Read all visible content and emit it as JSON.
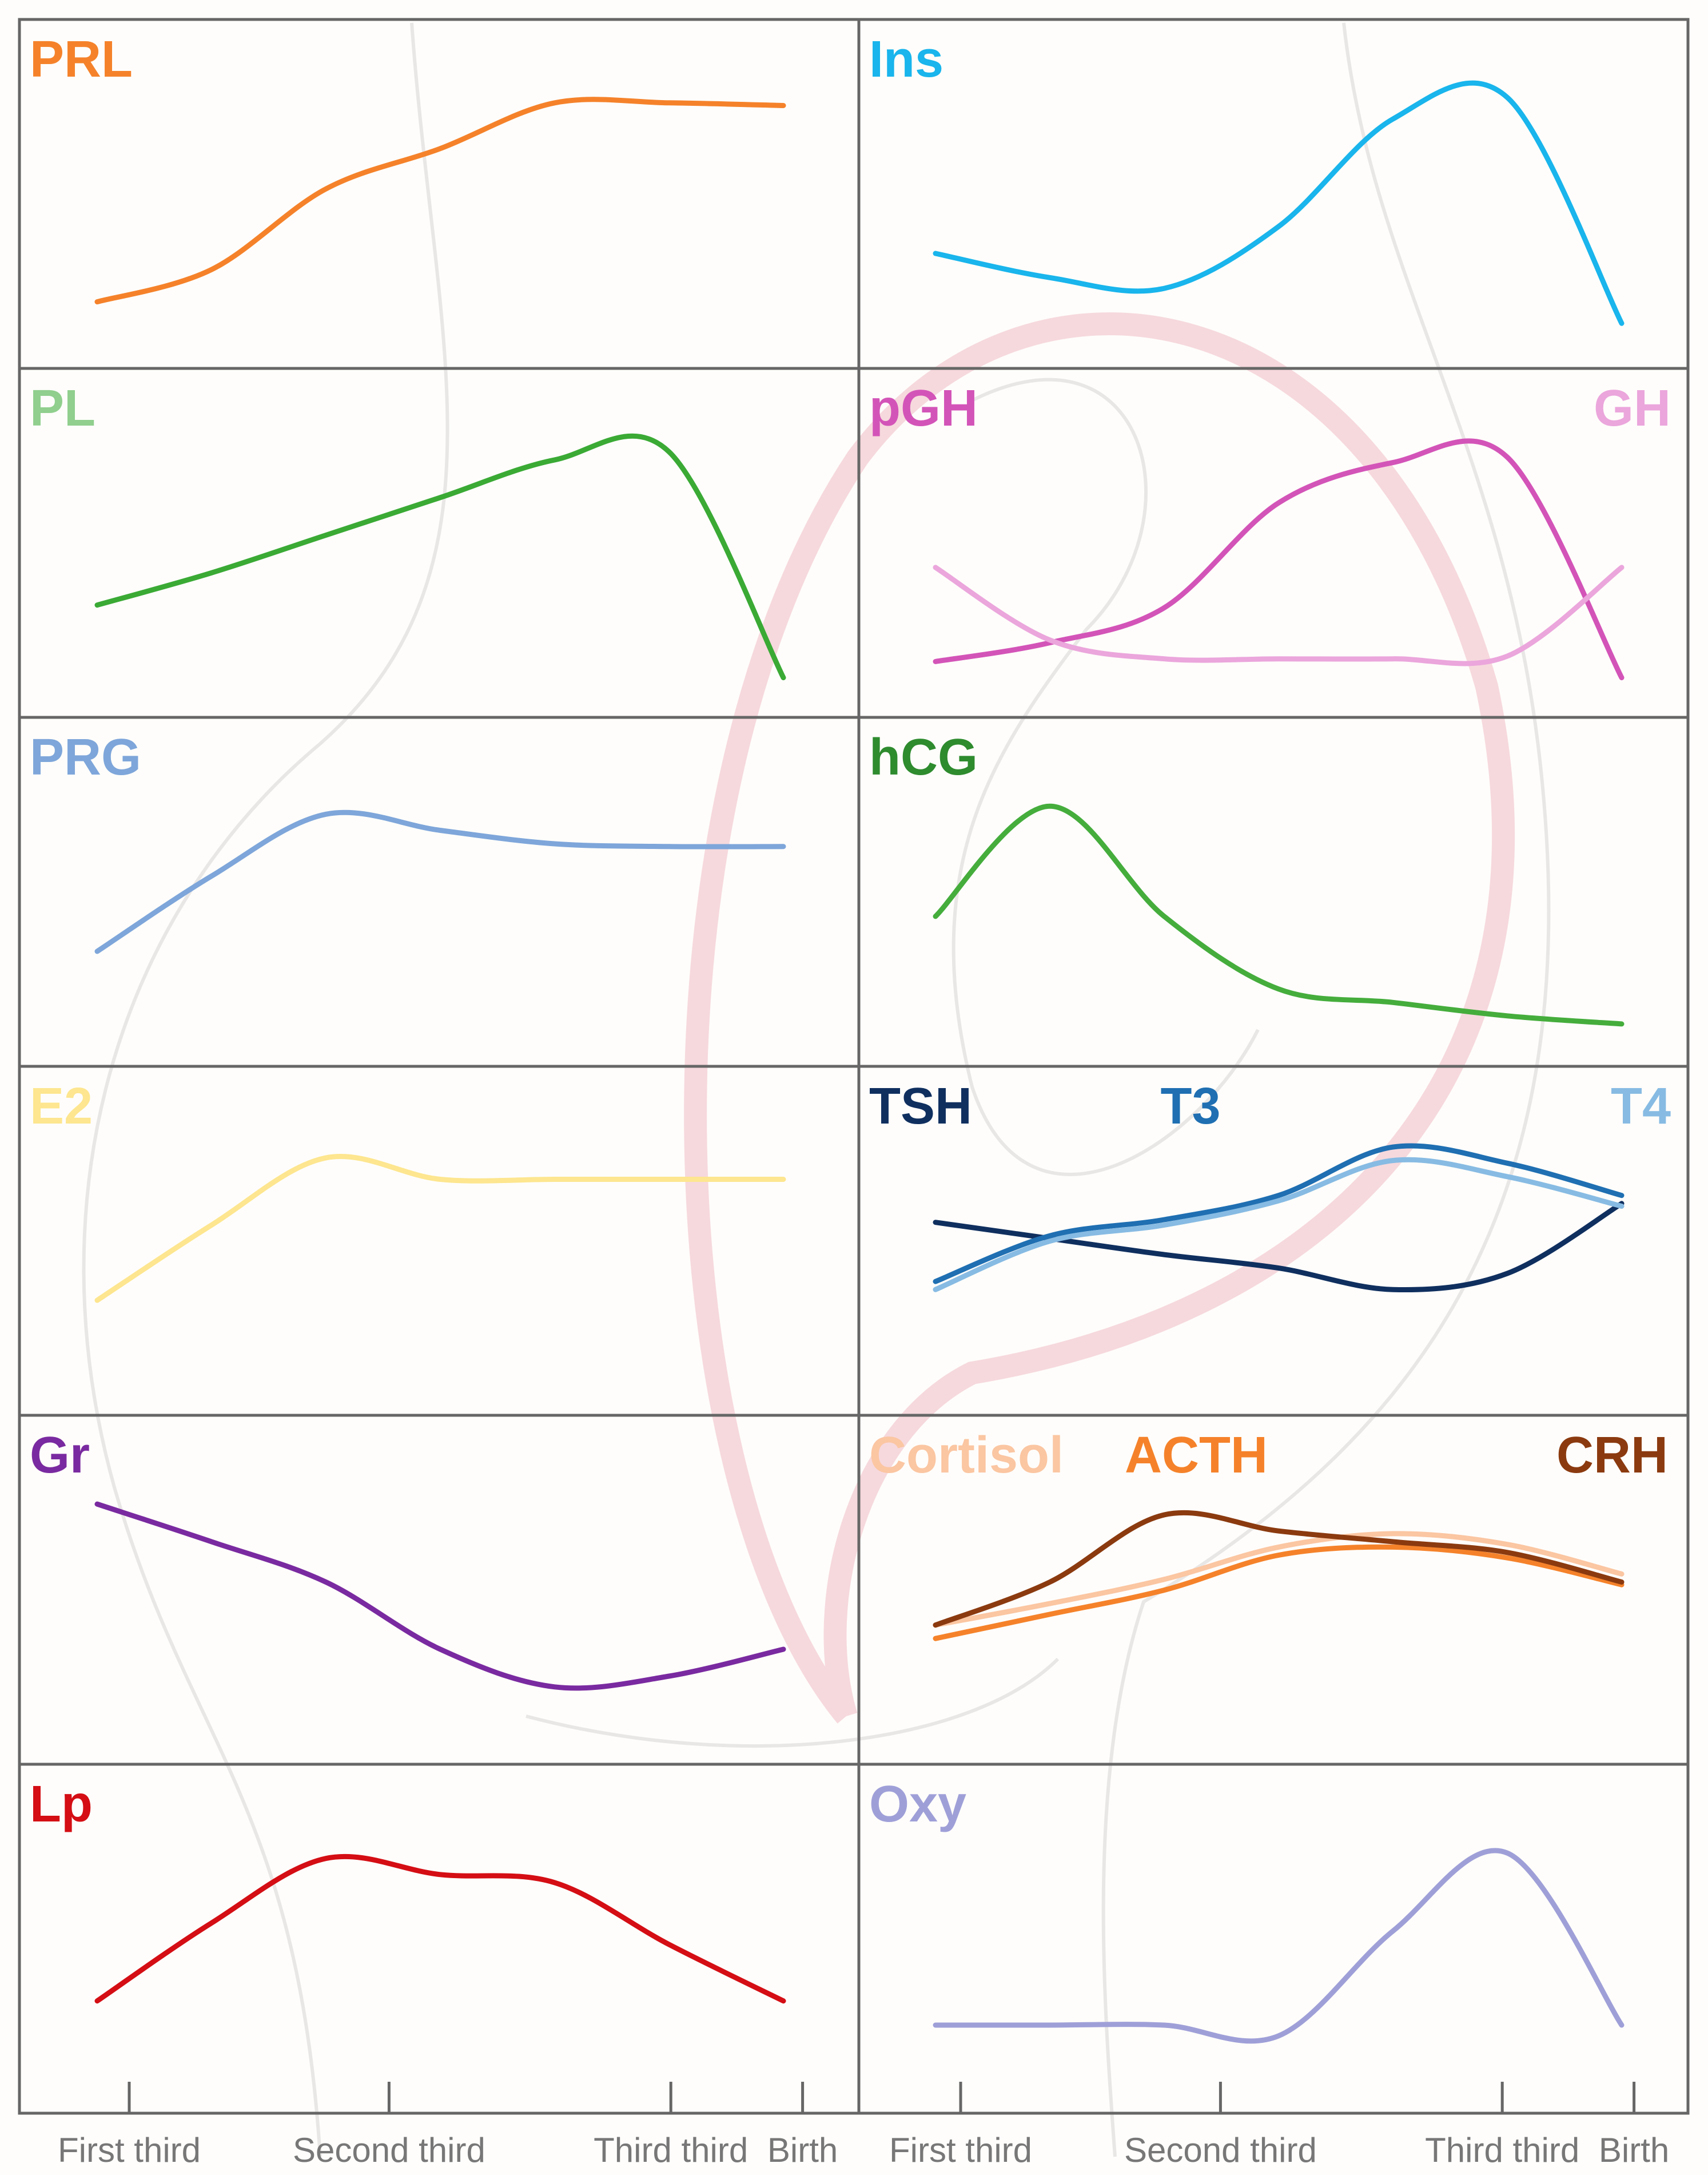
{
  "colors": {
    "PRL": "#f5822a",
    "Ins": "#19b5ec",
    "PL": "#90cf8e",
    "PL_line": "#3aaa35",
    "pGH": "#d354b8",
    "GH": "#eba6dc",
    "PRG": "#7ea6da",
    "hCG": "#2e8b2e",
    "hCG_line": "#45ad3c",
    "E2": "#fde68f",
    "TSH": "#0f2f5f",
    "T3": "#1f6fb2",
    "T4": "#87bbe3",
    "Gr": "#7a2aa0",
    "Cortisol": "#fbc6a2",
    "ACTH": "#f5822a",
    "CRH": "#8b3a0f",
    "Lp": "#d40e14",
    "Oxy": "#9f9fd8",
    "grid": "#666666",
    "background_illustration": "#f0efef"
  },
  "axes": {
    "left": {
      "ticks": [
        "First third",
        "Second third",
        "Third third",
        "Birth"
      ]
    },
    "right": {
      "ticks": [
        "First third",
        "Second third",
        "Third third",
        "Birth"
      ]
    }
  },
  "chart_data": [
    {
      "type": "line",
      "panel": "PRL",
      "labels": [
        {
          "text": "PRL",
          "color": "PRL"
        }
      ],
      "x": [
        0,
        1,
        2,
        3,
        4,
        5,
        6
      ],
      "ylim": [
        0,
        10
      ],
      "series": [
        {
          "name": "PRL",
          "color": "PRL",
          "values": [
            1.2,
            2.4,
            5.4,
            6.9,
            8.6,
            8.6,
            8.5
          ]
        }
      ]
    },
    {
      "type": "line",
      "panel": "Ins",
      "labels": [
        {
          "text": "Ins",
          "color": "Ins"
        }
      ],
      "x": [
        0,
        1,
        2,
        3,
        4,
        5,
        6
      ],
      "ylim": [
        0,
        10
      ],
      "series": [
        {
          "name": "Ins",
          "color": "Ins",
          "values": [
            3.0,
            2.1,
            1.7,
            4.0,
            8.0,
            8.8,
            0.4
          ]
        }
      ]
    },
    {
      "type": "line",
      "panel": "PL",
      "labels": [
        {
          "text": "PL",
          "color": "PL"
        }
      ],
      "x": [
        0,
        1,
        2,
        3,
        4,
        5,
        6
      ],
      "ylim": [
        0,
        10
      ],
      "series": [
        {
          "name": "PL",
          "color": "PL_line",
          "values": [
            2.9,
            4.1,
            5.5,
            6.9,
            8.3,
            8.6,
            0.2
          ]
        }
      ]
    },
    {
      "type": "line",
      "panel": "pGH / GH",
      "labels": [
        {
          "text": "pGH",
          "color": "pGH"
        },
        {
          "text": "GH",
          "color": "GH"
        }
      ],
      "x": [
        0,
        1,
        2,
        3,
        4,
        5,
        6
      ],
      "ylim": [
        0,
        10
      ],
      "series": [
        {
          "name": "pGH",
          "color": "pGH",
          "values": [
            0.8,
            1.5,
            2.8,
            6.7,
            8.2,
            8.4,
            0.2
          ]
        },
        {
          "name": "GH",
          "color": "GH",
          "values": [
            4.3,
            1.6,
            0.9,
            0.9,
            0.9,
            1.0,
            4.3
          ]
        }
      ]
    },
    {
      "type": "line",
      "panel": "PRG",
      "labels": [
        {
          "text": "PRG",
          "color": "PRG"
        }
      ],
      "x": [
        0,
        1,
        2,
        3,
        4,
        5,
        6
      ],
      "ylim": [
        0,
        10
      ],
      "series": [
        {
          "name": "PRG",
          "color": "PRG",
          "values": [
            3.0,
            5.8,
            8.1,
            7.5,
            7.0,
            6.9,
            6.9
          ]
        }
      ]
    },
    {
      "type": "line",
      "panel": "hCG",
      "labels": [
        {
          "text": "hCG",
          "color": "hCG"
        }
      ],
      "x": [
        0,
        1,
        2,
        3,
        4,
        5,
        6
      ],
      "ylim": [
        0,
        10
      ],
      "series": [
        {
          "name": "hCG",
          "color": "hCG_line",
          "values": [
            4.3,
            8.4,
            4.3,
            1.6,
            1.1,
            0.6,
            0.3
          ]
        }
      ]
    },
    {
      "type": "line",
      "panel": "E2",
      "labels": [
        {
          "text": "E2",
          "color": "E2"
        }
      ],
      "x": [
        0,
        1,
        2,
        3,
        4,
        5,
        6
      ],
      "ylim": [
        0,
        10
      ],
      "series": [
        {
          "name": "E2",
          "color": "E2",
          "values": [
            3.0,
            5.8,
            8.3,
            7.5,
            7.5,
            7.5,
            7.5
          ]
        }
      ]
    },
    {
      "type": "line",
      "panel": "TSH / T3 / T4",
      "labels": [
        {
          "text": "TSH",
          "color": "TSH"
        },
        {
          "text": "T3",
          "color": "T3"
        },
        {
          "text": "T4",
          "color": "T4"
        }
      ],
      "x": [
        0,
        1,
        2,
        3,
        4,
        5,
        6
      ],
      "ylim": [
        0,
        10
      ],
      "series": [
        {
          "name": "TSH",
          "color": "TSH",
          "values": [
            5.9,
            5.3,
            4.7,
            4.2,
            3.4,
            4.0,
            6.6
          ]
        },
        {
          "name": "T3",
          "color": "T3",
          "values": [
            3.7,
            5.4,
            6.0,
            6.9,
            8.7,
            8.1,
            6.9
          ]
        },
        {
          "name": "T4",
          "color": "T4",
          "values": [
            3.4,
            5.2,
            5.8,
            6.7,
            8.2,
            7.6,
            6.5
          ]
        }
      ]
    },
    {
      "type": "line",
      "panel": "Gr",
      "labels": [
        {
          "text": "Gr",
          "color": "Gr"
        }
      ],
      "x": [
        0,
        1,
        2,
        3,
        4,
        5,
        6
      ],
      "ylim": [
        0,
        10
      ],
      "series": [
        {
          "name": "Gr",
          "color": "Gr",
          "values": [
            8.4,
            7.0,
            5.5,
            3.0,
            1.6,
            2.0,
            3.0
          ]
        }
      ]
    },
    {
      "type": "line",
      "panel": "Cortisol / ACTH / CRH",
      "labels": [
        {
          "text": "Cortisol",
          "color": "Cortisol"
        },
        {
          "text": "ACTH",
          "color": "ACTH"
        },
        {
          "text": "CRH",
          "color": "CRH"
        }
      ],
      "x": [
        0,
        1,
        2,
        3,
        4,
        5,
        6
      ],
      "ylim": [
        0,
        10
      ],
      "series": [
        {
          "name": "Cortisol",
          "color": "Cortisol",
          "values": [
            3.9,
            4.7,
            5.6,
            6.8,
            7.3,
            6.9,
            5.8
          ]
        },
        {
          "name": "ACTH",
          "color": "ACTH",
          "values": [
            3.4,
            4.3,
            5.2,
            6.5,
            6.8,
            6.4,
            5.4
          ]
        },
        {
          "name": "CRH",
          "color": "CRH",
          "values": [
            3.9,
            5.5,
            8.0,
            7.4,
            7.0,
            6.6,
            5.5
          ]
        }
      ]
    },
    {
      "type": "line",
      "panel": "Lp",
      "labels": [
        {
          "text": "Lp",
          "color": "Lp"
        }
      ],
      "x": [
        0,
        1,
        2,
        3,
        4,
        5,
        6
      ],
      "ylim": [
        0,
        10
      ],
      "series": [
        {
          "name": "Lp",
          "color": "Lp",
          "values": [
            2.9,
            5.8,
            8.2,
            7.6,
            7.3,
            5.0,
            2.9
          ]
        }
      ]
    },
    {
      "type": "line",
      "panel": "Oxy",
      "labels": [
        {
          "text": "Oxy",
          "color": "Oxy"
        }
      ],
      "x": [
        0,
        1,
        2,
        3,
        4,
        5,
        6
      ],
      "ylim": [
        0,
        10
      ],
      "series": [
        {
          "name": "Oxy",
          "color": "Oxy",
          "values": [
            2.0,
            2.0,
            2.0,
            1.6,
            5.5,
            8.4,
            2.0
          ]
        }
      ]
    }
  ]
}
